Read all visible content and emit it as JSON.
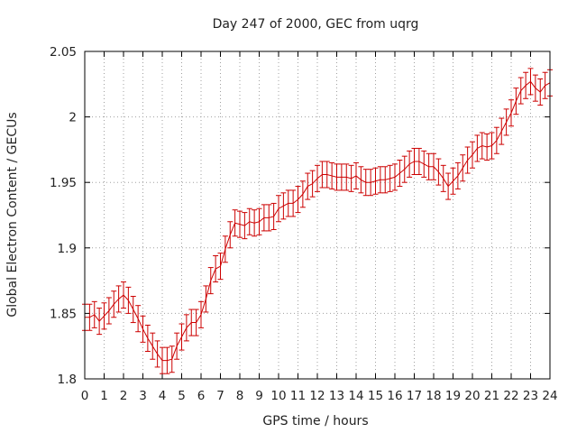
{
  "chart_data": {
    "type": "line",
    "title": "Day 247 of 2000, GEC from uqrg",
    "xlabel": "GPS time / hours",
    "ylabel": "Global Electron Content / GECUs",
    "xlim": [
      0,
      24
    ],
    "ylim": [
      1.8,
      2.05
    ],
    "x_ticks": [
      "0",
      "1",
      "2",
      "3",
      "4",
      "5",
      "6",
      "7",
      "8",
      "9",
      "10",
      "11",
      "12",
      "13",
      "14",
      "15",
      "16",
      "17",
      "18",
      "19",
      "20",
      "21",
      "22",
      "23",
      "24"
    ],
    "y_ticks": [
      "1.8",
      "1.85",
      "1.9",
      "1.95",
      "2",
      "2.05"
    ],
    "y_tick_values": [
      1.8,
      1.85,
      1.9,
      1.95,
      2.0,
      2.05
    ],
    "grid": true,
    "error_bar_halfwidth": 0.01,
    "series": [
      {
        "color": "#cc0000",
        "x": [
          0.0,
          0.25,
          0.5,
          0.75,
          1.0,
          1.25,
          1.5,
          1.75,
          2.0,
          2.25,
          2.5,
          2.75,
          3.0,
          3.25,
          3.5,
          3.75,
          4.0,
          4.25,
          4.5,
          4.75,
          5.0,
          5.25,
          5.5,
          5.75,
          6.0,
          6.25,
          6.5,
          6.75,
          7.0,
          7.25,
          7.5,
          7.75,
          8.0,
          8.25,
          8.5,
          8.75,
          9.0,
          9.25,
          9.5,
          9.75,
          10.0,
          10.25,
          10.5,
          10.75,
          11.0,
          11.25,
          11.5,
          11.75,
          12.0,
          12.25,
          12.5,
          12.75,
          13.0,
          13.25,
          13.5,
          13.75,
          14.0,
          14.25,
          14.5,
          14.75,
          15.0,
          15.25,
          15.5,
          15.75,
          16.0,
          16.25,
          16.5,
          16.75,
          17.0,
          17.25,
          17.5,
          17.75,
          18.0,
          18.25,
          18.5,
          18.75,
          19.0,
          19.25,
          19.5,
          19.75,
          20.0,
          20.25,
          20.5,
          20.75,
          21.0,
          21.25,
          21.5,
          21.75,
          22.0,
          22.25,
          22.5,
          22.75,
          23.0,
          23.25,
          23.5,
          23.75,
          24.0
        ],
        "y": [
          1.847,
          1.847,
          1.849,
          1.844,
          1.848,
          1.852,
          1.857,
          1.861,
          1.864,
          1.86,
          1.853,
          1.846,
          1.838,
          1.831,
          1.825,
          1.819,
          1.814,
          1.814,
          1.815,
          1.825,
          1.832,
          1.839,
          1.843,
          1.843,
          1.849,
          1.861,
          1.875,
          1.884,
          1.886,
          1.899,
          1.91,
          1.919,
          1.918,
          1.917,
          1.92,
          1.919,
          1.92,
          1.923,
          1.923,
          1.924,
          1.93,
          1.932,
          1.934,
          1.934,
          1.937,
          1.941,
          1.947,
          1.949,
          1.953,
          1.956,
          1.956,
          1.955,
          1.954,
          1.954,
          1.954,
          1.953,
          1.955,
          1.952,
          1.95,
          1.95,
          1.951,
          1.952,
          1.952,
          1.953,
          1.954,
          1.957,
          1.96,
          1.964,
          1.966,
          1.966,
          1.964,
          1.962,
          1.962,
          1.958,
          1.953,
          1.947,
          1.951,
          1.955,
          1.961,
          1.967,
          1.971,
          1.976,
          1.978,
          1.977,
          1.978,
          1.982,
          1.989,
          1.996,
          2.003,
          2.012,
          2.02,
          2.024,
          2.027,
          2.022,
          2.019,
          2.024,
          2.026
        ]
      }
    ]
  }
}
